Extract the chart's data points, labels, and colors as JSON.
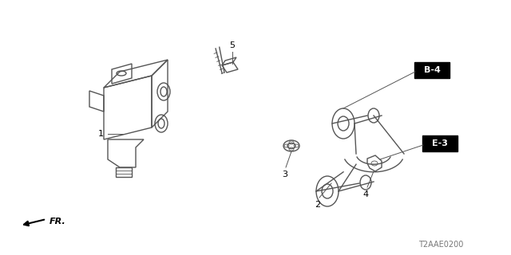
{
  "bg_color": "#ffffff",
  "line_color": "#555555",
  "label_color": "#000000",
  "fig_width": 6.4,
  "fig_height": 3.2,
  "dpi": 100,
  "footer_text": "T2AAE0200"
}
